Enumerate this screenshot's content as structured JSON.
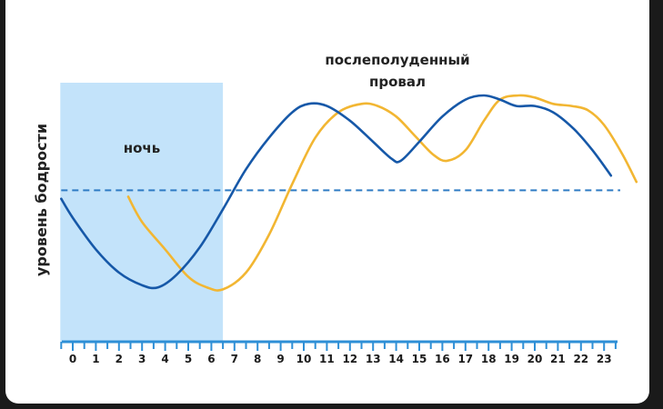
{
  "chart_data": {
    "type": "line",
    "title": "",
    "xlabel": "",
    "ylabel": "уровень бодрости",
    "x_ticks": [
      "0",
      "1",
      "2",
      "3",
      "4",
      "5",
      "6",
      "7",
      "8",
      "9",
      "10",
      "11",
      "12",
      "13",
      "14",
      "15",
      "16",
      "17",
      "18",
      "19",
      "20",
      "21",
      "22",
      "23"
    ],
    "xlim": [
      -0.5,
      23.5
    ],
    "ylim": [
      0,
      10
    ],
    "grid": false,
    "legend": "none",
    "night_region": {
      "label": "ночь",
      "x_range": [
        -0.5,
        6.5
      ],
      "color": "#c3e3fa"
    },
    "annotations": [
      {
        "text": [
          "послеполуденный",
          "провал"
        ],
        "x": 14.5,
        "y": 11.1
      }
    ],
    "threshold": {
      "y": 5.5,
      "color": "#2f7cc4",
      "style": "dashed"
    },
    "series": [
      {
        "color": "#1658a8",
        "x": [
          -0.5,
          0,
          1,
          2,
          3,
          3.7,
          4.5,
          5.5,
          6.5,
          7.5,
          8.5,
          9.5,
          10.2,
          11,
          12,
          13,
          13.8,
          14.2,
          15,
          16,
          17,
          17.8,
          18.5,
          19.2,
          20,
          20.8,
          21.7,
          22.5,
          23.3
        ],
        "y": [
          5.1,
          4.2,
          2.7,
          1.6,
          1.0,
          0.9,
          1.5,
          2.8,
          4.6,
          6.5,
          8.0,
          9.2,
          9.6,
          9.5,
          8.8,
          7.8,
          7.0,
          6.9,
          7.8,
          9.0,
          9.8,
          10.0,
          9.8,
          9.5,
          9.5,
          9.2,
          8.4,
          7.4,
          6.2
        ]
      },
      {
        "color": "#f2b632",
        "x": [
          2.4,
          3,
          4,
          5,
          5.8,
          6.5,
          7.5,
          8.5,
          9.5,
          10.5,
          11.5,
          12.5,
          13.2,
          14,
          14.8,
          15.6,
          16.2,
          17,
          17.8,
          18.5,
          19.3,
          20,
          20.8,
          21.6,
          22.3,
          23,
          23.8,
          24.4
        ],
        "y": [
          5.2,
          4.0,
          2.7,
          1.4,
          0.9,
          0.8,
          1.6,
          3.4,
          5.8,
          8.0,
          9.2,
          9.6,
          9.5,
          9.0,
          8.1,
          7.2,
          6.9,
          7.4,
          8.8,
          9.8,
          10.0,
          9.9,
          9.6,
          9.5,
          9.3,
          8.6,
          7.2,
          5.9
        ]
      }
    ]
  }
}
